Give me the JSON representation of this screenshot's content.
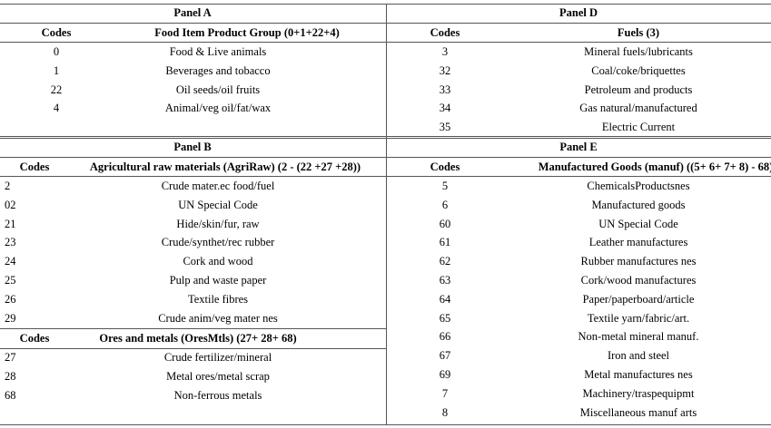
{
  "panel_a": {
    "title": "Panel A",
    "headers": [
      "Codes",
      "Food Item Product Group (0+1+22+4)"
    ],
    "rows": [
      [
        "0",
        "Food & Live animals"
      ],
      [
        "1",
        "Beverages and tobacco"
      ],
      [
        "22",
        "Oil seeds/oil fruits"
      ],
      [
        "4",
        "Animal/veg oil/fat/wax"
      ]
    ]
  },
  "panel_b": {
    "title": "Panel B",
    "headers": [
      "Codes",
      "Agricultural raw materials (AgriRaw) (2 - (22 +27 +28))"
    ],
    "rows": [
      [
        "2",
        "Crude mater.ec food/fuel"
      ],
      [
        "02",
        "UN Special Code"
      ],
      [
        "21",
        "Hide/skin/fur, raw"
      ],
      [
        "23",
        "Crude/synthet/rec rubber"
      ],
      [
        "24",
        "Cork and wood"
      ],
      [
        "25",
        "Pulp and waste paper"
      ],
      [
        "26",
        "Textile fibres"
      ],
      [
        "29",
        "Crude anim/veg mater nes"
      ]
    ],
    "sub_table": {
      "headers": [
        "Codes",
        "Ores and metals (OresMtls) (27+ 28+ 68)"
      ],
      "rows": [
        [
          "27",
          "Crude fertilizer/mineral"
        ],
        [
          "28",
          "Metal ores/metal scrap"
        ],
        [
          "68",
          "Non-ferrous metals"
        ]
      ]
    }
  },
  "panel_d": {
    "title": "Panel D",
    "headers": [
      "Codes",
      "Fuels (3)"
    ],
    "rows": [
      [
        "3",
        "Mineral fuels/lubricants"
      ],
      [
        "32",
        "Coal/coke/briquettes"
      ],
      [
        "33",
        "Petroleum and products"
      ],
      [
        "34",
        "Gas natural/manufactured"
      ],
      [
        "35",
        "Electric Current"
      ]
    ]
  },
  "panel_e": {
    "title": "Panel E",
    "headers": [
      "Codes",
      "Manufactured Goods (manuf) ((5+ 6+ 7+ 8) - 68)"
    ],
    "rows": [
      [
        "5",
        "ChemicalsProductsnes"
      ],
      [
        "6",
        "Manufactured goods"
      ],
      [
        "60",
        "UN Special Code"
      ],
      [
        "61",
        "Leather manufactures"
      ],
      [
        "62",
        "Rubber manufactures nes"
      ],
      [
        "63",
        "Cork/wood manufactures"
      ],
      [
        "64",
        "Paper/paperboard/article"
      ],
      [
        "65",
        "Textile yarn/fabric/art."
      ],
      [
        "66",
        "Non-metal mineral manuf."
      ],
      [
        "67",
        "Iron and steel"
      ],
      [
        "69",
        "Metal manufactures nes"
      ],
      [
        "7",
        "Machinery/traspequipmt"
      ],
      [
        "8",
        "Miscellaneous manuf arts"
      ]
    ]
  }
}
